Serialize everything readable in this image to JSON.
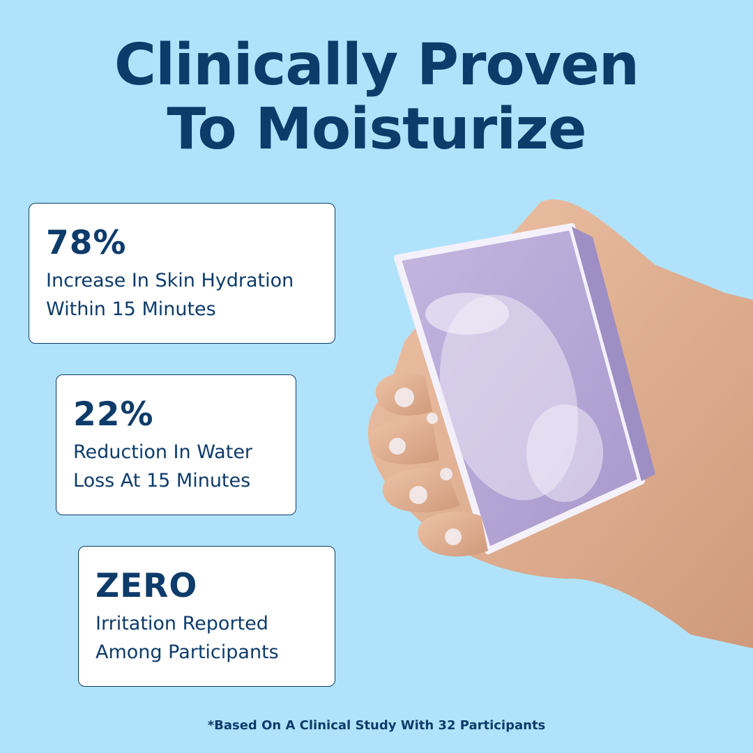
{
  "headline": {
    "line1": "Clinically Proven",
    "line2": "To Moisturize"
  },
  "stats": [
    {
      "value": "78%",
      "description": "Increase In Skin Hydration\nWithin 15 Minutes"
    },
    {
      "value": "22%",
      "description": "Reduction In Water\nLoss At 15 Minutes"
    },
    {
      "value": "ZERO",
      "description": "Irritation Reported\nAmong Participants"
    }
  ],
  "footnote": "*Based On A Clinical Study With 32 Participants",
  "colors": {
    "background": "#b0e3fb",
    "text": "#0d3b6a",
    "card": "#ffffff",
    "soap": "#b7aad6",
    "skin": "#e2b193"
  },
  "image": {
    "subject": "hand-holding-lathered-soap-bar-icon"
  }
}
